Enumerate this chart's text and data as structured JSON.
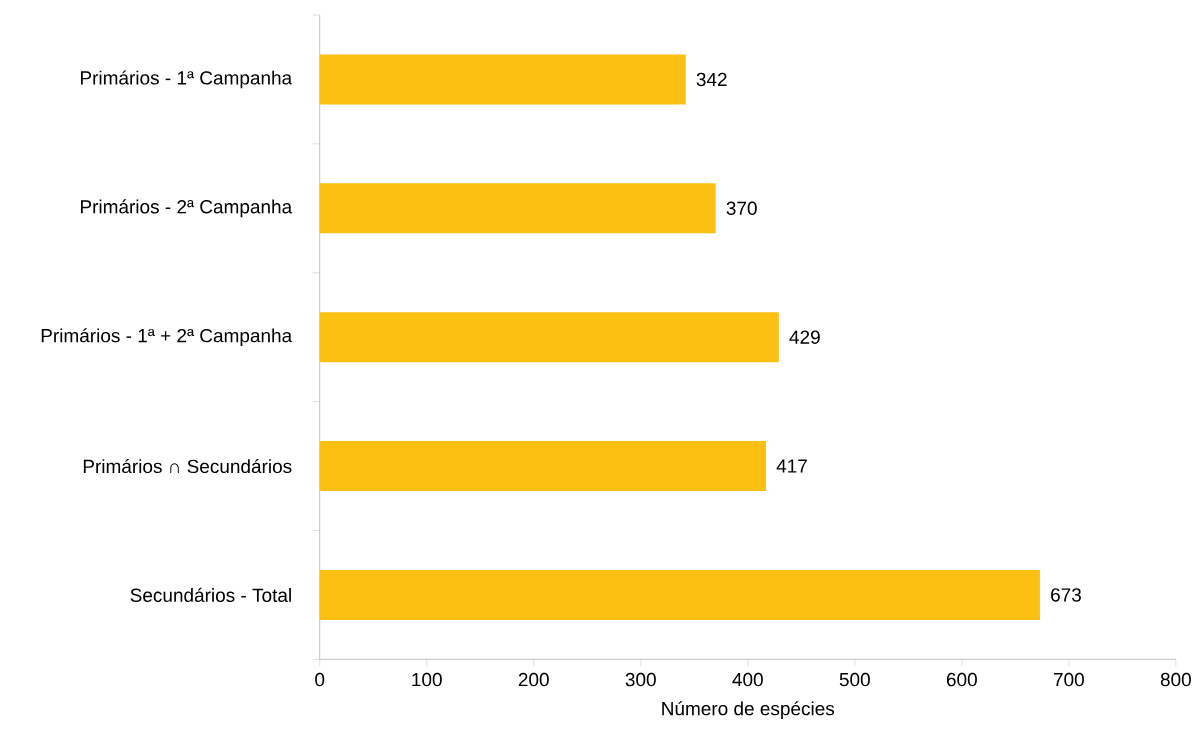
{
  "chart_data": {
    "type": "bar",
    "orientation": "horizontal",
    "categories": [
      "Primários - 1ª Campanha",
      "Primários - 2ª Campanha",
      "Primários - 1ª + 2ª Campanha",
      "Primários ∩ Secundários",
      "Secundários - Total"
    ],
    "values": [
      342,
      370,
      429,
      417,
      673
    ],
    "color": "#fbc012",
    "xlim": [
      0,
      800
    ],
    "xticks": [
      0,
      100,
      200,
      300,
      400,
      500,
      600,
      700,
      800
    ],
    "xlabel": "Número de espécies",
    "data_labels": true
  }
}
